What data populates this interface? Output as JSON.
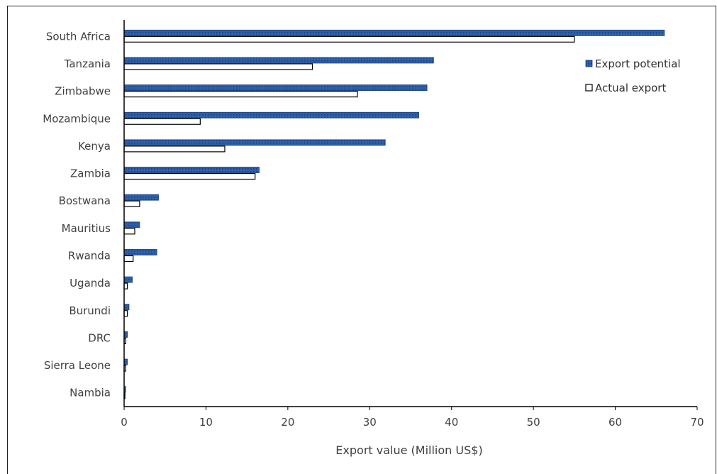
{
  "chart_data": {
    "type": "bar",
    "orientation": "horizontal",
    "categories": [
      "South Africa",
      "Tanzania",
      "Zimbabwe",
      "Mozambique",
      "Kenya",
      "Zambia",
      "Bostwana",
      "Mauritius",
      "Rwanda",
      "Uganda",
      "Burundi",
      "DRC",
      "Sierra Leone",
      "Nambia"
    ],
    "series": [
      {
        "name": "Export potential",
        "color": "#2e5fa8",
        "pattern": "dotted-fill",
        "values": [
          66,
          37.8,
          37,
          36,
          31.9,
          16.5,
          4.2,
          1.9,
          4.0,
          1.0,
          0.6,
          0.4,
          0.4,
          0.2
        ]
      },
      {
        "name": "Actual export",
        "color": "#ffffff",
        "values": [
          55,
          23,
          28.5,
          9.3,
          12.3,
          16,
          1.9,
          1.3,
          1.1,
          0.4,
          0.4,
          0.2,
          0.2,
          0.1
        ]
      }
    ],
    "xlabel": "Export value (Million US$)",
    "ylabel": "",
    "xlim": [
      0,
      70
    ],
    "xticks": [
      0,
      10,
      20,
      30,
      40,
      50,
      60,
      70
    ],
    "grid": false,
    "legend_position": "top-right"
  }
}
